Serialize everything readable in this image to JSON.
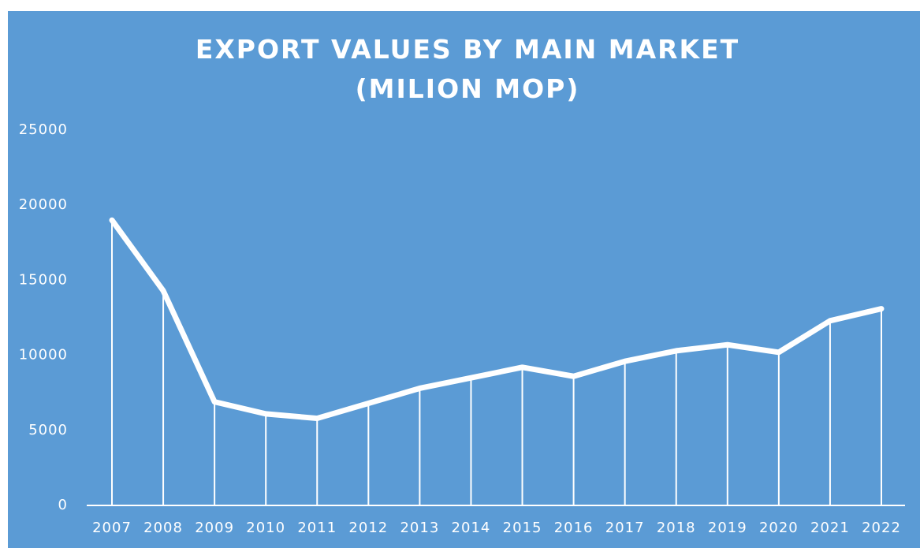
{
  "chart_data": {
    "type": "line",
    "title": "EXPORT VALUES BY MAIN MARKET (MILION MOP)",
    "categories": [
      "2007",
      "2008",
      "2009",
      "2010",
      "2011",
      "2012",
      "2013",
      "2014",
      "2015",
      "2016",
      "2017",
      "2018",
      "2019",
      "2020",
      "2021",
      "2022"
    ],
    "values": [
      19000,
      14300,
      6900,
      6100,
      5800,
      6800,
      7800,
      8500,
      9200,
      8600,
      9600,
      10300,
      10700,
      10200,
      12300,
      13100
    ],
    "color": "#ffffff",
    "background": "#5b9bd5",
    "drop_lines": true,
    "ylim": [
      0,
      25000
    ],
    "yticks": [
      0,
      5000,
      10000,
      15000,
      20000,
      25000
    ],
    "grid": false
  }
}
